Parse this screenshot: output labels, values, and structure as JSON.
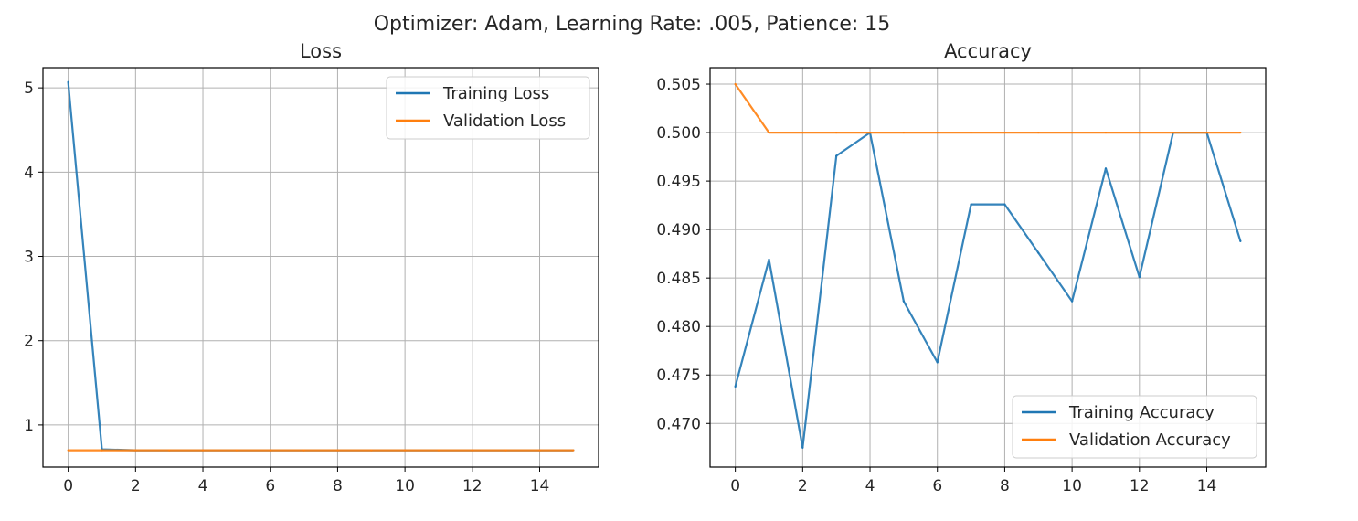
{
  "suptitle": "Optimizer: Adam, Learning Rate: .005, Patience: 15",
  "colors": {
    "training": "#1f77b4",
    "validation": "#ff7f0e"
  },
  "chart_data": [
    {
      "type": "line",
      "title": "Loss",
      "x": [
        0,
        1,
        2,
        3,
        4,
        5,
        6,
        7,
        8,
        9,
        10,
        11,
        12,
        13,
        14,
        15
      ],
      "xticks": [
        0,
        2,
        4,
        6,
        8,
        10,
        12,
        14
      ],
      "yticks": [
        1,
        2,
        3,
        4,
        5
      ],
      "xlim": [
        -0.75,
        15.75
      ],
      "ylim": [
        0.5,
        5.24
      ],
      "grid": true,
      "legend_position": "top-right",
      "series": [
        {
          "name": "Training Loss",
          "color": "#1f77b4",
          "values": [
            5.07,
            0.71,
            0.7,
            0.7,
            0.7,
            0.7,
            0.7,
            0.7,
            0.7,
            0.7,
            0.7,
            0.7,
            0.7,
            0.7,
            0.7,
            0.7
          ]
        },
        {
          "name": "Validation Loss",
          "color": "#ff7f0e",
          "values": [
            0.7,
            0.7,
            0.7,
            0.7,
            0.7,
            0.7,
            0.7,
            0.7,
            0.7,
            0.7,
            0.7,
            0.7,
            0.7,
            0.7,
            0.7,
            0.7
          ]
        }
      ]
    },
    {
      "type": "line",
      "title": "Accuracy",
      "x": [
        0,
        1,
        2,
        3,
        4,
        5,
        6,
        7,
        8,
        9,
        10,
        11,
        12,
        13,
        14,
        15
      ],
      "xticks": [
        0,
        2,
        4,
        6,
        8,
        10,
        12,
        14
      ],
      "yticks": [
        "0.470",
        "0.475",
        "0.480",
        "0.485",
        "0.490",
        "0.495",
        "0.500",
        "0.505"
      ],
      "xlim": [
        -0.75,
        15.75
      ],
      "ylim": [
        0.4655,
        0.5067
      ],
      "grid": true,
      "legend_position": "bottom-right",
      "series": [
        {
          "name": "Training Accuracy",
          "color": "#1f77b4",
          "values": [
            0.4738,
            0.4869,
            0.4675,
            0.4976,
            0.5,
            0.4826,
            0.4763,
            0.4926,
            0.4926,
            0.4876,
            0.4826,
            0.4963,
            0.4851,
            0.5,
            0.5,
            0.4888
          ]
        },
        {
          "name": "Validation Accuracy",
          "color": "#ff7f0e",
          "values": [
            0.505,
            0.5,
            0.5,
            0.5,
            0.5,
            0.5,
            0.5,
            0.5,
            0.5,
            0.5,
            0.5,
            0.5,
            0.5,
            0.5,
            0.5,
            0.5
          ]
        }
      ]
    }
  ]
}
